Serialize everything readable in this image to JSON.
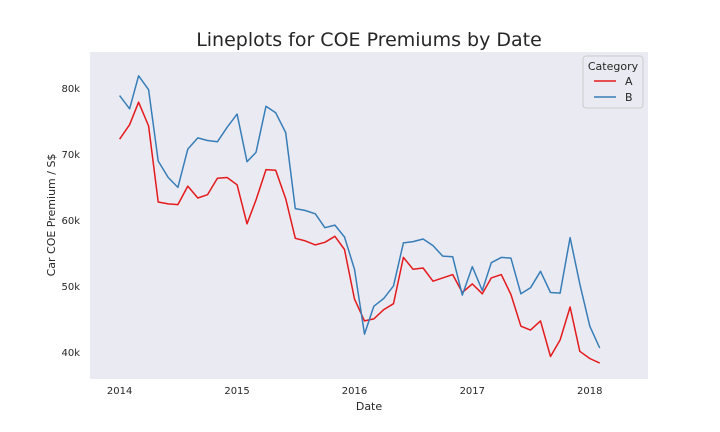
{
  "chart_data": {
    "type": "line",
    "title": "Lineplots for COE Premiums by Date",
    "xlabel": "Date",
    "ylabel": "Car COE Premium / S$",
    "x_ticks": [
      "2014",
      "2015",
      "2016",
      "2017",
      "2018"
    ],
    "y_ticks": [
      "40k",
      "50k",
      "60k",
      "70k",
      "80k"
    ],
    "ylim": [
      36000,
      85500
    ],
    "xlim": [
      "2013-10-01",
      "2018-07-01"
    ],
    "grid": false,
    "legend": {
      "title": "Category",
      "placement": "top-right"
    },
    "x": [
      "2014-01",
      "2014-02",
      "2014-03",
      "2014-04",
      "2014-05",
      "2014-06",
      "2014-07",
      "2014-08",
      "2014-09",
      "2014-10",
      "2014-11",
      "2014-12",
      "2015-01",
      "2015-02",
      "2015-03",
      "2015-04",
      "2015-05",
      "2015-06",
      "2015-07",
      "2015-08",
      "2015-09",
      "2015-10",
      "2015-11",
      "2015-12",
      "2016-01",
      "2016-02",
      "2016-03",
      "2016-04",
      "2016-05",
      "2016-06",
      "2016-07",
      "2016-08",
      "2016-09",
      "2016-10",
      "2016-11",
      "2016-12",
      "2017-01",
      "2017-02",
      "2017-03",
      "2017-04",
      "2017-05",
      "2017-06",
      "2017-07",
      "2017-08",
      "2017-09",
      "2017-10",
      "2017-11",
      "2017-12",
      "2018-01",
      "2018-02"
    ],
    "series": [
      {
        "name": "A",
        "color": "#e41a1c",
        "values": [
          72300,
          74500,
          77900,
          74300,
          62800,
          62500,
          62400,
          65200,
          63400,
          63900,
          66400,
          66500,
          65400,
          59500,
          63100,
          67700,
          67600,
          63300,
          57300,
          56900,
          56300,
          56700,
          57600,
          55600,
          48100,
          44800,
          45100,
          46500,
          47400,
          54400,
          52600,
          52800,
          50800,
          51300,
          51800,
          49100,
          50400,
          48900,
          51300,
          51800,
          48800,
          44000,
          43400,
          44800,
          39400,
          41900,
          46900,
          40200,
          39100,
          38400
        ]
      },
      {
        "name": "B",
        "color": "#377eb8",
        "values": [
          78900,
          76900,
          81900,
          79800,
          69000,
          66500,
          65000,
          70800,
          72500,
          72100,
          71900,
          74100,
          76100,
          68900,
          70300,
          77300,
          76300,
          73300,
          61800,
          61500,
          61000,
          58900,
          59300,
          57500,
          52600,
          42800,
          47000,
          48200,
          50100,
          56600,
          56800,
          57200,
          56200,
          54600,
          54500,
          48700,
          53000,
          49400,
          53600,
          54400,
          54300,
          48900,
          49800,
          52300,
          49100,
          49000,
          57400,
          50400,
          44000,
          40700
        ]
      }
    ]
  }
}
